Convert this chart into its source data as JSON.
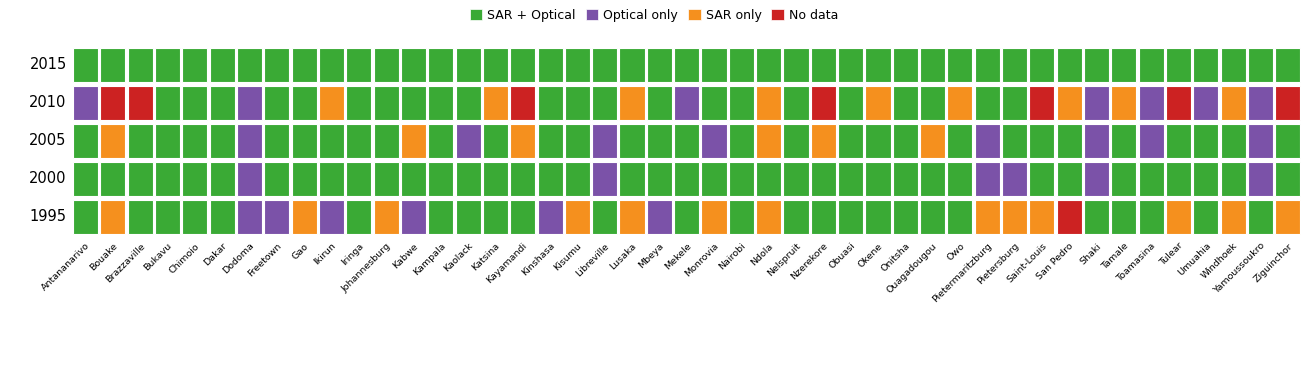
{
  "cities": [
    "Antananarivo",
    "Bouake",
    "Brazzaville",
    "Bukavu",
    "Chimoio",
    "Dakar",
    "Dodoma",
    "Freetown",
    "Gao",
    "Ikirun",
    "Iringa",
    "Johannesburg",
    "Kabwe",
    "Kampala",
    "Kaolack",
    "Katsina",
    "Kayamandi",
    "Kinshasa",
    "Kisumu",
    "Libreville",
    "Lusaka",
    "Mbeya",
    "Mekele",
    "Monrovia",
    "Nairobi",
    "Ndola",
    "Nelspruit",
    "Nzerekore",
    "Obuasi",
    "Okene",
    "Onitsha",
    "Ouagadougou",
    "Owo",
    "Pietermaritzburg",
    "Pietersburg",
    "Saint-Louis",
    "San Pedro",
    "Shaki",
    "Tamale",
    "Toamasina",
    "Tulear",
    "Umuahia",
    "Windhoek",
    "Yamoussoukro",
    "Ziguinchor"
  ],
  "years": [
    2015,
    2010,
    2005,
    2000,
    1995
  ],
  "colors": {
    "SAR + Optical": "#3aaa35",
    "Optical only": "#7b52a8",
    "SAR only": "#f5901e",
    "No data": "#cc2222"
  },
  "legend_labels": [
    "SAR + Optical",
    "Optical only",
    "SAR only",
    "No data"
  ],
  "data": {
    "2015": [
      "G",
      "G",
      "G",
      "G",
      "G",
      "G",
      "G",
      "G",
      "G",
      "G",
      "G",
      "G",
      "G",
      "G",
      "G",
      "G",
      "G",
      "G",
      "G",
      "G",
      "G",
      "G",
      "G",
      "G",
      "G",
      "G",
      "G",
      "G",
      "G",
      "G",
      "G",
      "G",
      "G",
      "G",
      "G",
      "G",
      "G",
      "G",
      "G",
      "G",
      "G",
      "G",
      "G",
      "G",
      "G"
    ],
    "2010": [
      "P",
      "R",
      "R",
      "G",
      "G",
      "G",
      "P",
      "G",
      "G",
      "O",
      "G",
      "G",
      "G",
      "G",
      "G",
      "O",
      "R",
      "G",
      "G",
      "G",
      "O",
      "G",
      "P",
      "G",
      "G",
      "O",
      "G",
      "R",
      "G",
      "O",
      "G",
      "G",
      "O",
      "G",
      "G",
      "R",
      "O",
      "P",
      "O",
      "P",
      "R",
      "P",
      "O",
      "P",
      "R"
    ],
    "2005": [
      "G",
      "O",
      "G",
      "G",
      "G",
      "G",
      "P",
      "G",
      "G",
      "G",
      "G",
      "G",
      "O",
      "G",
      "P",
      "G",
      "O",
      "G",
      "G",
      "P",
      "G",
      "G",
      "G",
      "P",
      "G",
      "O",
      "G",
      "O",
      "G",
      "G",
      "G",
      "O",
      "G",
      "P",
      "G",
      "G",
      "G",
      "P",
      "G",
      "P",
      "G",
      "G",
      "G",
      "P",
      "G"
    ],
    "2000": [
      "G",
      "G",
      "G",
      "G",
      "G",
      "G",
      "P",
      "G",
      "G",
      "G",
      "G",
      "G",
      "G",
      "G",
      "G",
      "G",
      "G",
      "G",
      "G",
      "P",
      "G",
      "G",
      "G",
      "G",
      "G",
      "G",
      "G",
      "G",
      "G",
      "G",
      "G",
      "G",
      "G",
      "P",
      "P",
      "G",
      "G",
      "P",
      "G",
      "G",
      "G",
      "G",
      "G",
      "P",
      "G"
    ],
    "1995": [
      "G",
      "O",
      "G",
      "G",
      "G",
      "G",
      "P",
      "P",
      "O",
      "P",
      "G",
      "O",
      "P",
      "G",
      "G",
      "G",
      "G",
      "P",
      "O",
      "G",
      "O",
      "P",
      "G",
      "O",
      "G",
      "O",
      "G",
      "G",
      "G",
      "G",
      "G",
      "G",
      "G",
      "O",
      "O",
      "O",
      "R",
      "G",
      "G",
      "G",
      "O",
      "G",
      "O",
      "G",
      "O"
    ]
  },
  "color_map": {
    "G": "#3aaa35",
    "P": "#7b52a8",
    "O": "#f5901e",
    "R": "#cc2222"
  },
  "figsize": [
    13.08,
    3.8
  ],
  "dpi": 100
}
